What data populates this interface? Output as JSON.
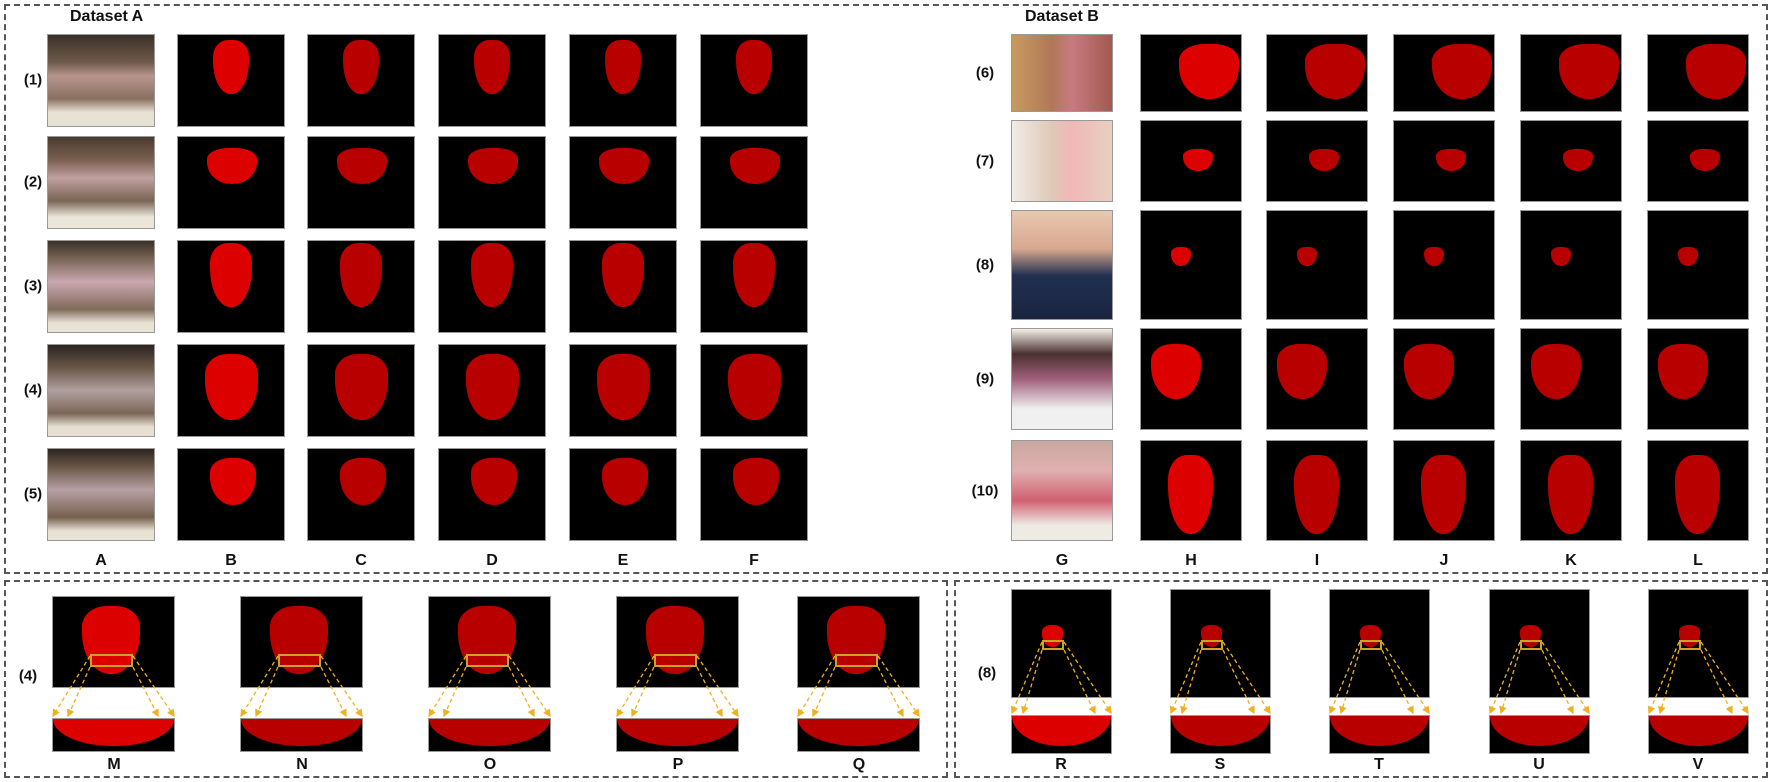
{
  "figure": {
    "top_panel": {
      "dataset_a": {
        "title": "Dataset A",
        "row_labels": [
          "(1)",
          "(2)",
          "(3)",
          "(4)",
          "(5)"
        ],
        "column_labels": [
          "A",
          "B",
          "C",
          "D",
          "E",
          "F"
        ]
      },
      "dataset_b": {
        "title": "Dataset B",
        "row_labels": [
          "(6)",
          "(7)",
          "(8)",
          "(9)",
          "(10)"
        ],
        "column_labels": [
          "G",
          "H",
          "I",
          "J",
          "K",
          "L"
        ]
      }
    },
    "bottom_left_panel": {
      "row_label": "(4)",
      "column_labels": [
        "M",
        "N",
        "O",
        "P",
        "Q"
      ]
    },
    "bottom_right_panel": {
      "row_label": "(8)",
      "column_labels": [
        "R",
        "S",
        "T",
        "U",
        "V"
      ]
    },
    "colors": {
      "ground_truth_mask": "#dd0000",
      "prediction_mask": "#b80000",
      "background": "#000000",
      "zoom_box": "#c9a227",
      "arrow": "#f0b020",
      "border_dash": "#555555"
    }
  }
}
